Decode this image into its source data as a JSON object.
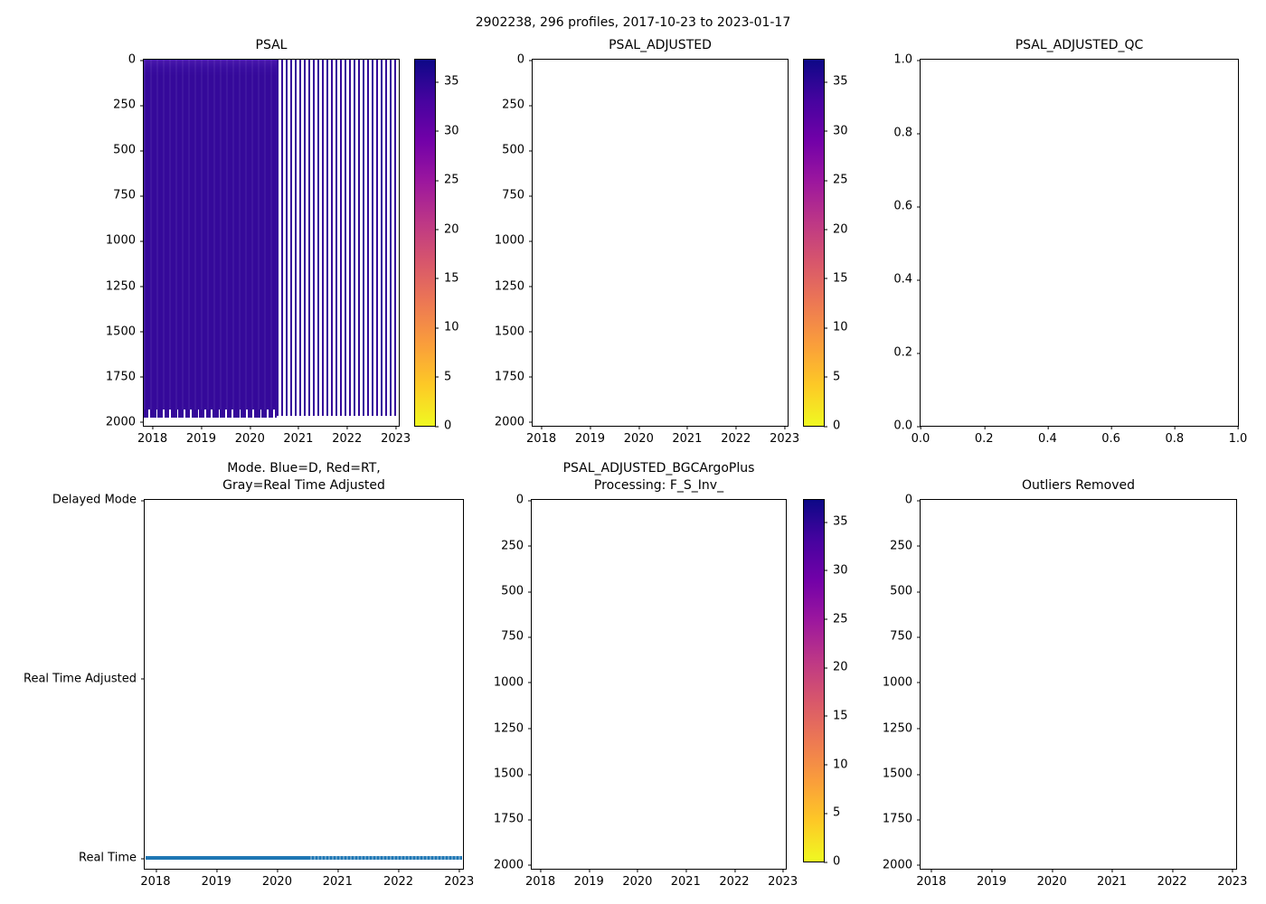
{
  "figure": {
    "suptitle": "2902238, 296 profiles, 2017-10-23 to 2023-01-17"
  },
  "panels": {
    "psal": {
      "title": "PSAL"
    },
    "psal_adjusted": {
      "title": "PSAL_ADJUSTED"
    },
    "psal_adjusted_qc": {
      "title": "PSAL_ADJUSTED_QC"
    },
    "mode": {
      "title": "Mode. Blue=D, Red=RT,\nGray=Real Time Adjusted"
    },
    "bgc": {
      "title": "PSAL_ADJUSTED_BGCArgoPlus\nProcessing: F_S_Inv_"
    },
    "outliers": {
      "title": "Outliers Removed"
    }
  },
  "axes": {
    "time": {
      "labels": [
        "2018",
        "2019",
        "2020",
        "2021",
        "2022",
        "2023"
      ],
      "fractions": [
        0.034,
        0.225,
        0.416,
        0.606,
        0.797,
        0.988
      ]
    },
    "depth": {
      "labels": [
        "0",
        "250",
        "500",
        "750",
        "1000",
        "1250",
        "1500",
        "1750",
        "2000"
      ],
      "fractions": [
        0,
        0.124,
        0.248,
        0.371,
        0.495,
        0.619,
        0.743,
        0.866,
        0.99
      ]
    },
    "unit_x": {
      "labels": [
        "0.0",
        "0.2",
        "0.4",
        "0.6",
        "0.8",
        "1.0"
      ],
      "fractions": [
        0,
        0.2,
        0.4,
        0.6,
        0.8,
        1.0
      ]
    },
    "unit_y": {
      "labels": [
        "1.0",
        "0.8",
        "0.6",
        "0.4",
        "0.2",
        "0.0"
      ],
      "fractions": [
        0,
        0.2,
        0.4,
        0.6,
        0.8,
        1.0
      ]
    },
    "mode_y": {
      "labels": [
        "Delayed Mode",
        "Real Time Adjusted",
        "Real Time"
      ],
      "fractions": [
        0.0,
        0.485,
        0.971
      ]
    },
    "salinity_colorbar": {
      "labels": [
        "35",
        "30",
        "25",
        "20",
        "15",
        "10",
        "5",
        "0"
      ],
      "fractions": [
        0.06,
        0.194,
        0.329,
        0.463,
        0.597,
        0.732,
        0.866,
        1.0
      ]
    }
  },
  "colors": {
    "heatmap_high_salinity": "#35099a",
    "heatmap_surface_band": "#4a18ae",
    "mode_line": "#1f77b4",
    "colormap_stops_top_to_bottom": [
      "#0d0887",
      "#46039f",
      "#7201a8",
      "#9c179e",
      "#bd3786",
      "#d8576b",
      "#ed7953",
      "#fa9e3b",
      "#fdc926",
      "#f0f921"
    ]
  },
  "chart_data": [
    {
      "type": "heatmap",
      "title": "PSAL",
      "x_range": [
        "2017-10-23",
        "2023-01-17"
      ],
      "x_ticks": [
        2018,
        2019,
        2020,
        2021,
        2022,
        2023
      ],
      "ylabel": "",
      "y_ticks": [
        0,
        250,
        500,
        750,
        1000,
        1250,
        1500,
        1750,
        2000
      ],
      "ylim": [
        2020,
        0
      ],
      "colormap": "plasma_r",
      "clim": [
        0,
        37.25
      ],
      "colorbar_ticks": [
        0,
        5,
        10,
        15,
        20,
        25,
        30,
        35
      ],
      "values_summary": "Salinity ~34-36 (dark indigo) over depths 0-2000; dense continuous profiles from 2017-10 to mid-2020 forming a solid block with slightly lower salinity near the surface and jagged profile bottoms near 1950-2010; sparse individual profiles (thin vertical columns separated by gaps) from mid-2020 to 2023-01"
    },
    {
      "type": "heatmap",
      "title": "PSAL_ADJUSTED",
      "x_range": [
        "2017-10-23",
        "2023-01-17"
      ],
      "x_ticks": [
        2018,
        2019,
        2020,
        2021,
        2022,
        2023
      ],
      "y_ticks": [
        0,
        250,
        500,
        750,
        1000,
        1250,
        1500,
        1750,
        2000
      ],
      "ylim": [
        2020,
        0
      ],
      "colormap": "plasma_r",
      "clim": [
        0,
        37.25
      ],
      "colorbar_ticks": [
        0,
        5,
        10,
        15,
        20,
        25,
        30,
        35
      ],
      "values_summary": "empty — no adjusted data plotted"
    },
    {
      "type": "scatter",
      "title": "PSAL_ADJUSTED_QC",
      "xlim": [
        0.0,
        1.0
      ],
      "ylim": [
        0.0,
        1.0
      ],
      "x_ticks": [
        0.0,
        0.2,
        0.4,
        0.6,
        0.8,
        1.0
      ],
      "y_ticks": [
        0.0,
        0.2,
        0.4,
        0.6,
        0.8,
        1.0
      ],
      "values_summary": "empty — no QC flags plotted"
    },
    {
      "type": "line",
      "title": "Mode. Blue=D, Red=RT,\nGray=Real Time Adjusted",
      "x_range": [
        "2017-10-23",
        "2023-01-17"
      ],
      "x_ticks": [
        2018,
        2019,
        2020,
        2021,
        2022,
        2023
      ],
      "y_categories": [
        "Real Time",
        "Real Time Adjusted",
        "Delayed Mode"
      ],
      "series": [
        {
          "name": "mode",
          "color": "#1f77b4",
          "value": "Real Time",
          "description": "all 296 profiles are Real Time mode — thick blue line at y='Real Time' spanning the full time range"
        }
      ],
      "legend": "off"
    },
    {
      "type": "heatmap",
      "title": "PSAL_ADJUSTED_BGCArgoPlus\nProcessing: F_S_Inv_",
      "x_range": [
        "2017-10-23",
        "2023-01-17"
      ],
      "x_ticks": [
        2018,
        2019,
        2020,
        2021,
        2022,
        2023
      ],
      "y_ticks": [
        0,
        250,
        500,
        750,
        1000,
        1250,
        1500,
        1750,
        2000
      ],
      "ylim": [
        2020,
        0
      ],
      "colormap": "plasma_r",
      "clim": [
        0,
        37.25
      ],
      "colorbar_ticks": [
        0,
        5,
        10,
        15,
        20,
        25,
        30,
        35
      ],
      "values_summary": "empty — no BGCArgoPlus-processed data plotted"
    },
    {
      "type": "heatmap",
      "title": "Outliers Removed",
      "x_range": [
        "2017-10-23",
        "2023-01-17"
      ],
      "x_ticks": [
        2018,
        2019,
        2020,
        2021,
        2022,
        2023
      ],
      "y_ticks": [
        0,
        250,
        500,
        750,
        1000,
        1250,
        1500,
        1750,
        2000
      ],
      "ylim": [
        2020,
        0
      ],
      "values_summary": "empty — no outlier-removed data plotted"
    }
  ]
}
